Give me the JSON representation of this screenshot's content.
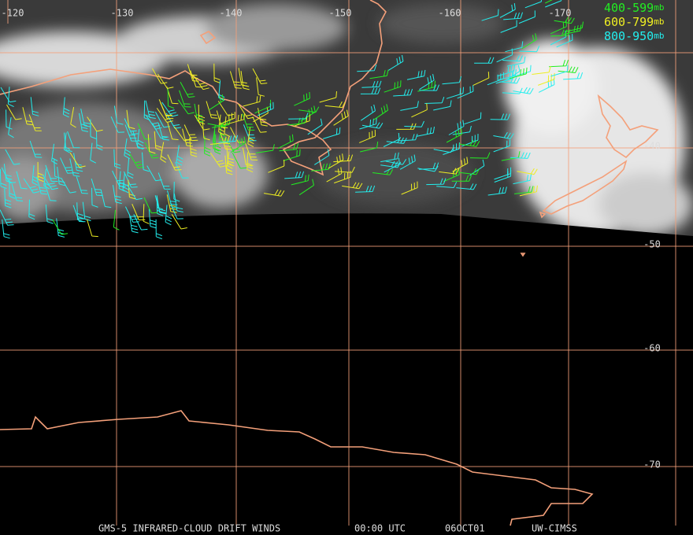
{
  "map": {
    "longitude_labels": [
      "-120",
      "-130",
      "-140",
      "-150",
      "-160",
      "-170"
    ],
    "latitude_labels": [
      "-40",
      "-50",
      "-60",
      "-70"
    ],
    "legend": [
      {
        "range": "400-599",
        "unit": "mb",
        "color": "#22ee22"
      },
      {
        "range": "600-799",
        "unit": "mb",
        "color": "#eeee22"
      },
      {
        "range": "800-950",
        "unit": "mb",
        "color": "#22eeee"
      }
    ],
    "footer": [
      "GMS-5 INFRARED-CLOUD DRIFT WINDS",
      "00:00 UTC",
      "06OCT01",
      "UW-CIMSS"
    ]
  }
}
